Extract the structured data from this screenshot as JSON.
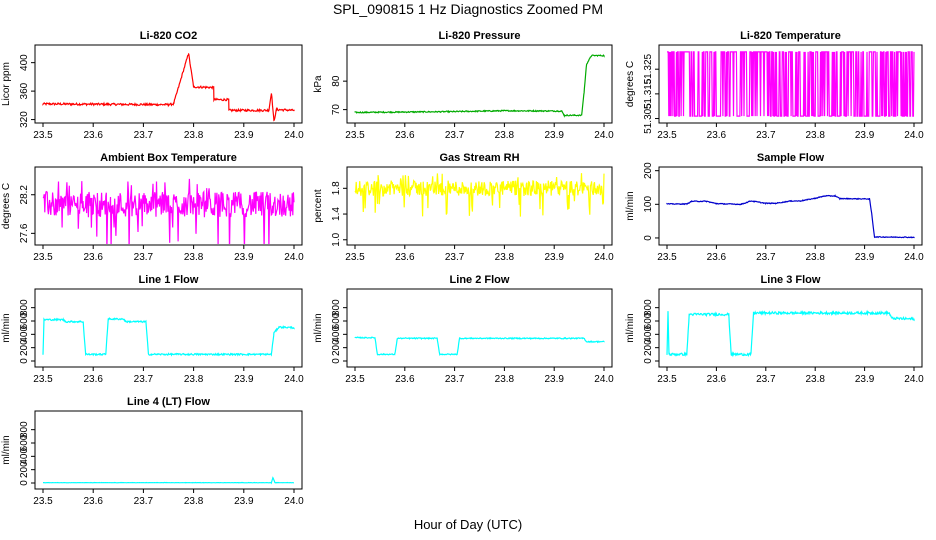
{
  "title": "SPL_090815  1 Hz Diagnostics Zoomed PM",
  "xlabel": "Hour of Day (UTC)",
  "chart_data": [
    {
      "type": "line",
      "title": "Li-820 CO2",
      "ylabel": "Licor ppm",
      "color": "#ff0000",
      "xlim": [
        23.5,
        24.0
      ],
      "ylim": [
        318,
        422
      ],
      "xticks": [
        "23.5",
        "23.6",
        "23.7",
        "23.8",
        "23.9",
        "24.0"
      ],
      "yticks": [
        320,
        360,
        400
      ],
      "x": [
        23.5,
        23.75,
        23.76,
        23.79,
        23.79,
        23.8,
        23.8,
        23.84,
        23.84,
        23.87,
        23.87,
        23.95,
        23.955,
        23.96,
        23.965,
        24.0
      ],
      "y": [
        342,
        341,
        342,
        413,
        413,
        366,
        366,
        365,
        348,
        348,
        333,
        333,
        358,
        318,
        334,
        333
      ],
      "noise": 1.5
    },
    {
      "type": "line",
      "title": "Li-820 Pressure",
      "ylabel": "kPa",
      "color": "#00aa00",
      "xlim": [
        23.5,
        24.0
      ],
      "ylim": [
        66,
        92
      ],
      "xticks": [
        "23.5",
        "23.6",
        "23.7",
        "23.8",
        "23.9",
        "24.0"
      ],
      "yticks": [
        70,
        80
      ],
      "x": [
        23.5,
        23.7,
        23.8,
        23.915,
        23.92,
        23.955,
        23.96,
        23.965,
        23.975,
        24.0
      ],
      "y": [
        69,
        69.3,
        69.6,
        69.5,
        68,
        68,
        76,
        86,
        89,
        89
      ],
      "noise": 0.2
    },
    {
      "type": "line",
      "title": "Li-820 Temperature",
      "ylabel": "degrees C",
      "color": "#ff00ff",
      "xlim": [
        23.5,
        24.0
      ],
      "ylim": [
        51.304,
        51.334
      ],
      "xticks": [
        "23.5",
        "23.6",
        "23.7",
        "23.8",
        "23.9",
        "24.0"
      ],
      "yticks": [
        "51.305",
        "51.315",
        "51.325"
      ],
      "pattern": "toggle",
      "low": 51.306,
      "high": 51.332
    },
    {
      "type": "line",
      "title": "Ambient Box Temperature",
      "ylabel": "degrees C",
      "color": "#ff00ff",
      "xlim": [
        23.5,
        24.0
      ],
      "ylim": [
        27.45,
        28.6
      ],
      "xticks": [
        "23.5",
        "23.6",
        "23.7",
        "23.8",
        "23.9",
        "24.0"
      ],
      "yticks": [
        "27.6",
        "28.2"
      ],
      "pattern": "noise",
      "center": 28.05,
      "spread": 0.2
    },
    {
      "type": "line",
      "title": "Gas Stream RH",
      "ylabel": "percent",
      "color": "#ffff00",
      "xlim": [
        23.5,
        24.0
      ],
      "ylim": [
        0.95,
        2.1
      ],
      "xticks": [
        "23.5",
        "23.6",
        "23.7",
        "23.8",
        "23.9",
        "24.0"
      ],
      "yticks": [
        "1.0",
        "1.4",
        "1.8"
      ],
      "pattern": "noise",
      "center": 1.8,
      "spread": 0.12
    },
    {
      "type": "line",
      "title": "Sample Flow",
      "ylabel": "ml/min",
      "color": "#0000cc",
      "xlim": [
        23.5,
        24.0
      ],
      "ylim": [
        -15,
        205
      ],
      "xticks": [
        "23.5",
        "23.6",
        "23.7",
        "23.8",
        "23.9",
        "24.0"
      ],
      "yticks": [
        0,
        100,
        200
      ],
      "x": [
        23.5,
        23.54,
        23.55,
        23.58,
        23.6,
        23.65,
        23.67,
        23.7,
        23.72,
        23.75,
        23.77,
        23.8,
        23.82,
        23.84,
        23.85,
        23.91,
        23.915,
        23.92,
        24.0
      ],
      "y": [
        101,
        101,
        109,
        109,
        102,
        100,
        110,
        103,
        103,
        110,
        110,
        118,
        125,
        125,
        117,
        116,
        65,
        3,
        2
      ],
      "noise": 1.2
    },
    {
      "type": "line",
      "title": "Line 1 Flow",
      "ylabel": "ml/min",
      "color": "#00ffff",
      "xlim": [
        23.5,
        24.0
      ],
      "ylim": [
        -60,
        1050
      ],
      "xticks": [
        "23.5",
        "23.6",
        "23.7",
        "23.8",
        "23.9",
        "24.0"
      ],
      "yticks": [
        0,
        200,
        400,
        600,
        800
      ],
      "x": [
        23.5,
        23.502,
        23.54,
        23.545,
        23.58,
        23.585,
        23.625,
        23.63,
        23.66,
        23.665,
        23.705,
        23.71,
        23.955,
        23.96,
        23.97,
        24.0
      ],
      "y": [
        100,
        620,
        620,
        590,
        590,
        100,
        100,
        630,
        630,
        590,
        590,
        100,
        100,
        420,
        510,
        500
      ],
      "noise": 12
    },
    {
      "type": "line",
      "title": "Line 2 Flow",
      "ylabel": "ml/min",
      "color": "#00ffff",
      "xlim": [
        23.5,
        24.0
      ],
      "ylim": [
        -60,
        1050
      ],
      "xticks": [
        "23.5",
        "23.6",
        "23.7",
        "23.8",
        "23.9",
        "24.0"
      ],
      "yticks": [
        0,
        200,
        400,
        600,
        800
      ],
      "x": [
        23.5,
        23.54,
        23.545,
        23.58,
        23.585,
        23.665,
        23.67,
        23.705,
        23.71,
        23.96,
        23.965,
        24.0
      ],
      "y": [
        350,
        350,
        100,
        100,
        340,
        340,
        100,
        100,
        340,
        340,
        290,
        290
      ],
      "noise": 8
    },
    {
      "type": "line",
      "title": "Line 3 Flow",
      "ylabel": "ml/min",
      "color": "#00ffff",
      "xlim": [
        23.5,
        24.0
      ],
      "ylim": [
        -60,
        1050
      ],
      "xticks": [
        "23.5",
        "23.6",
        "23.7",
        "23.8",
        "23.9",
        "24.0"
      ],
      "yticks": [
        0,
        200,
        400,
        600,
        800
      ],
      "x": [
        23.5,
        23.502,
        23.504,
        23.54,
        23.545,
        23.625,
        23.63,
        23.665,
        23.67,
        23.675,
        23.95,
        23.955,
        24.0
      ],
      "y": [
        100,
        740,
        100,
        100,
        700,
        700,
        100,
        100,
        100,
        720,
        720,
        640,
        630
      ],
      "noise": 18
    },
    {
      "type": "line",
      "title": "Line 4 (LT) Flow",
      "ylabel": "ml/min",
      "color": "#00ffff",
      "xlim": [
        23.5,
        24.0
      ],
      "ylim": [
        -60,
        1050
      ],
      "xticks": [
        "23.5",
        "23.6",
        "23.7",
        "23.8",
        "23.9",
        "24.0"
      ],
      "yticks": [
        0,
        200,
        400,
        600,
        800
      ],
      "x": [
        23.5,
        23.955,
        23.958,
        23.962,
        24.0
      ],
      "y": [
        5,
        5,
        80,
        5,
        5
      ],
      "noise": 2
    }
  ]
}
